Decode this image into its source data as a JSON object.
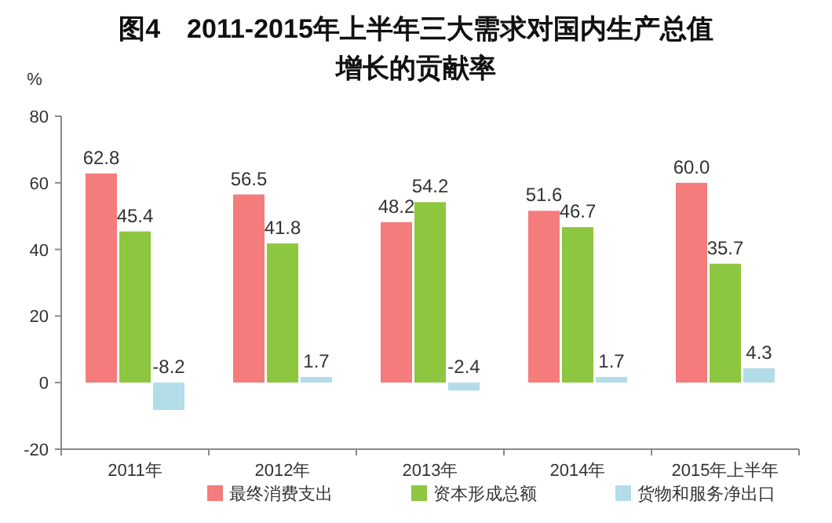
{
  "chart_data": {
    "type": "bar",
    "title": "图4　2011-2015年上半年三大需求对国内生产总值增长的贡献率",
    "ylabel": "%",
    "categories": [
      "2011年",
      "2012年",
      "2013年",
      "2014年",
      "2015年上半年"
    ],
    "series": [
      {
        "name": "最终消费支出",
        "color": "#f47c7c",
        "values": [
          62.8,
          56.5,
          48.2,
          51.6,
          60.0
        ],
        "value_labels": [
          "62.8",
          "56.5",
          "48.2",
          "51.6",
          "60.0"
        ]
      },
      {
        "name": "资本形成总额",
        "color": "#8dc63f",
        "values": [
          45.4,
          41.8,
          54.2,
          46.7,
          35.7
        ],
        "value_labels": [
          "45.4",
          "41.8",
          "54.2",
          "46.7",
          "35.7"
        ]
      },
      {
        "name": "货物和服务净出口",
        "color": "#b2dde8",
        "values": [
          -8.2,
          1.7,
          -2.4,
          1.7,
          4.3
        ],
        "value_labels": [
          "-8.2",
          "1.7",
          "-2.4",
          "1.7",
          "4.3"
        ]
      }
    ],
    "ylim": [
      -20,
      80
    ],
    "yticks": [
      -20,
      0,
      20,
      40,
      60,
      80
    ],
    "grid": false,
    "legend": "bottom"
  }
}
